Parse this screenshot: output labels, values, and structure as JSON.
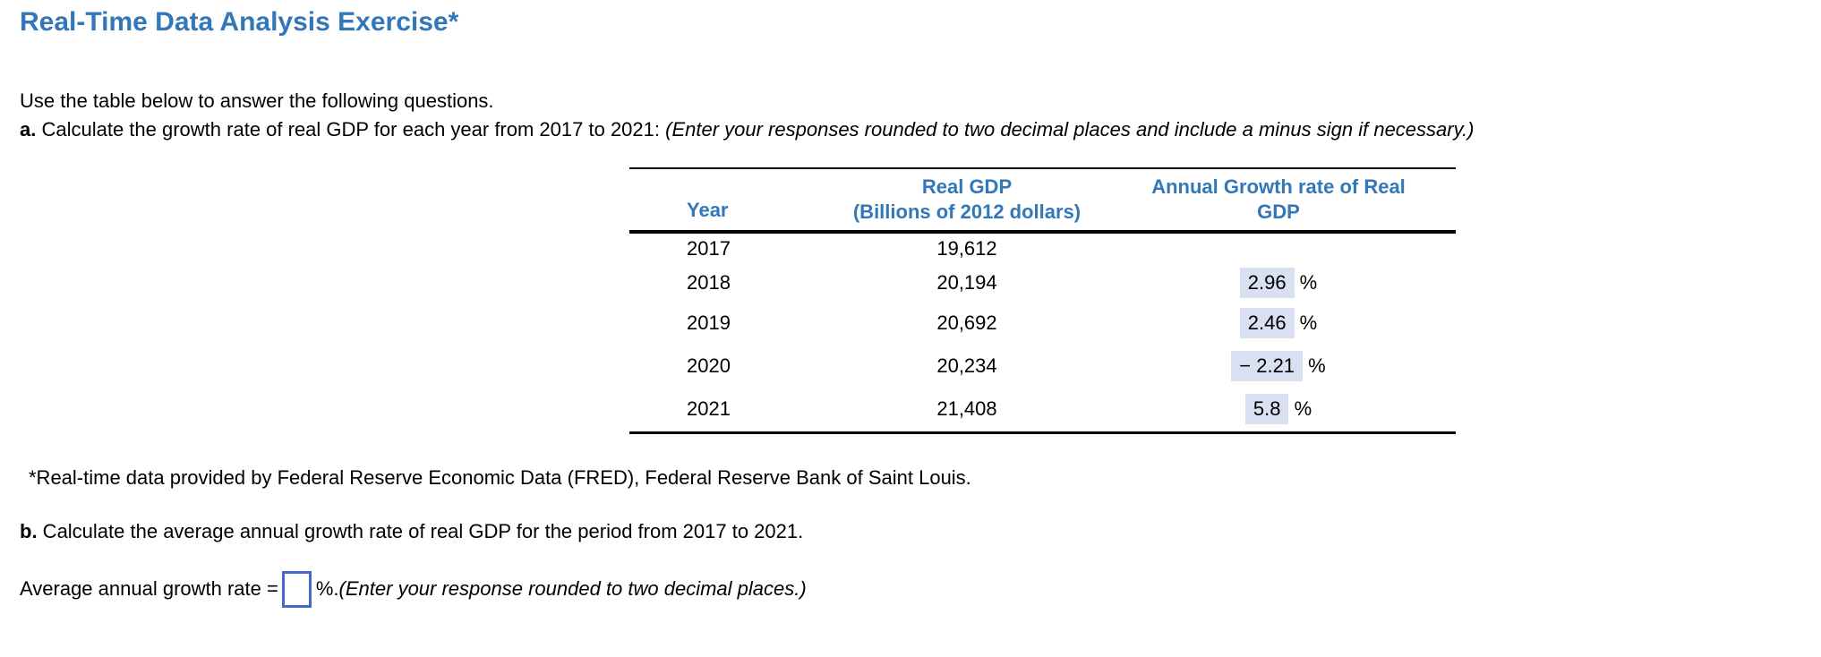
{
  "title": "Real-Time Data Analysis Exercise*",
  "intro": "Use the table below to answer the following questions.",
  "question_a": {
    "label": "a.",
    "text": " Calculate the growth rate of real GDP for each year from 2017 to 2021: ",
    "note": "(Enter your responses rounded to two decimal places and include a minus sign if necessary.)"
  },
  "table": {
    "headers": {
      "year": "Year",
      "gdp_line1": "Real GDP",
      "gdp_line2": "(Billions of 2012 dollars)",
      "growth_line1": "Annual Growth rate of Real",
      "growth_line2": "GDP"
    },
    "percent_suffix": "%",
    "rows": [
      {
        "year": "2017",
        "gdp": "19,612",
        "growth": ""
      },
      {
        "year": "2018",
        "gdp": "20,194",
        "growth": "2.96"
      },
      {
        "year": "2019",
        "gdp": "20,692",
        "growth": "2.46"
      },
      {
        "year": "2020",
        "gdp": "20,234",
        "growth": "− 2.21"
      },
      {
        "year": "2021",
        "gdp": "21,408",
        "growth": "5.8"
      }
    ]
  },
  "footnote": "*Real-time data provided by Federal Reserve Economic Data (FRED), Federal Reserve Bank of Saint Louis.",
  "question_b": {
    "label": "b.",
    "text": " Calculate the average annual growth rate of real GDP for the period from 2017 to 2021."
  },
  "answer_line": {
    "prefix": "Average annual growth rate = ",
    "input_value": "",
    "suffix": "%. ",
    "note": "(Enter your response rounded to two decimal places.)"
  },
  "colors": {
    "title_blue": "#3277B8",
    "header_blue": "#3277B8",
    "highlight": "#D9E0F2",
    "input_border": "#4268CC"
  }
}
